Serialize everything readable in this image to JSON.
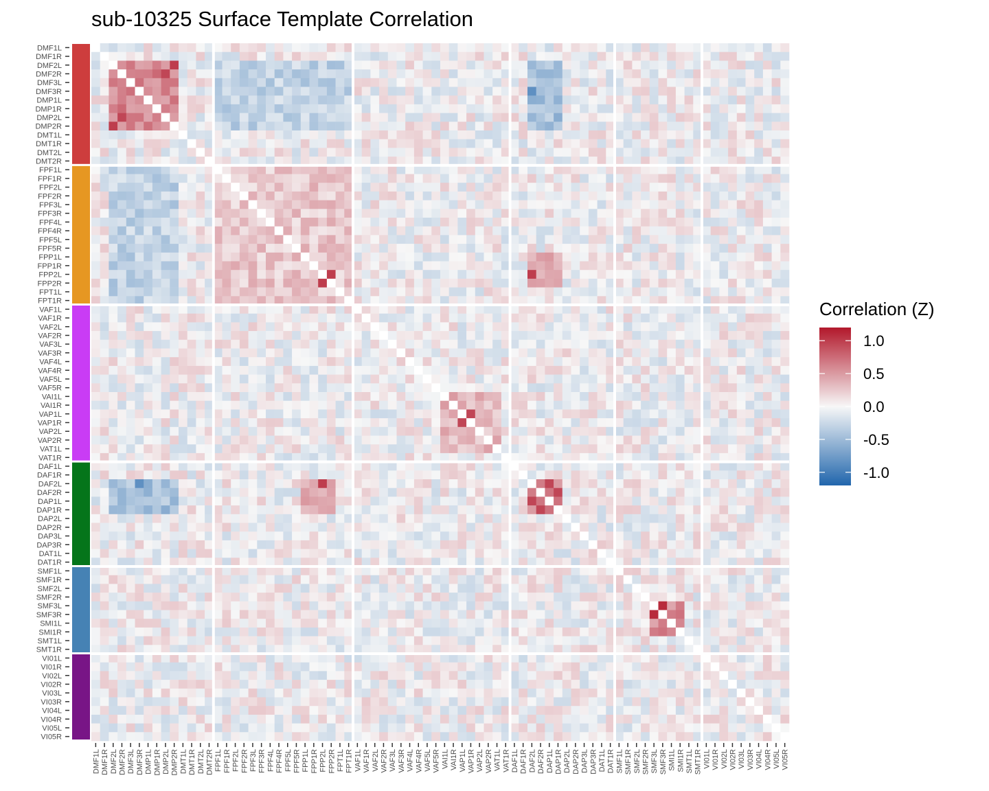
{
  "chart_data": {
    "type": "heatmap",
    "title": "sub-10325 Surface Template Correlation",
    "xlabel": "",
    "ylabel": "",
    "labels": [
      "DMF1L",
      "DMF1R",
      "DMF2L",
      "DMF2R",
      "DMF3L",
      "DMF3R",
      "DMP1L",
      "DMP1R",
      "DMP2L",
      "DMP2R",
      "DMT1L",
      "DMT1R",
      "DMT2L",
      "DMT2R",
      "FPF1L",
      "FPF1R",
      "FPF2L",
      "FPF2R",
      "FPF3L",
      "FPF3R",
      "FPF4L",
      "FPF4R",
      "FPF5L",
      "FPF5R",
      "FPP1L",
      "FPP1R",
      "FPP2L",
      "FPP2R",
      "FPT1L",
      "FPT1R",
      "VAF1L",
      "VAF1R",
      "VAF2L",
      "VAF2R",
      "VAF3L",
      "VAF3R",
      "VAF4L",
      "VAF4R",
      "VAF5L",
      "VAF5R",
      "VAI1L",
      "VAI1R",
      "VAP1L",
      "VAP1R",
      "VAP2L",
      "VAP2R",
      "VAT1L",
      "VAT1R",
      "DAF1L",
      "DAF1R",
      "DAF2L",
      "DAF2R",
      "DAP1L",
      "DAP1R",
      "DAP2L",
      "DAP2R",
      "DAP3L",
      "DAP3R",
      "DAT1L",
      "DAT1R",
      "SMF1L",
      "SMF1R",
      "SMF2L",
      "SMF2R",
      "SMF3L",
      "SMF3R",
      "SMI1L",
      "SMI1R",
      "SMT1L",
      "SMT1R",
      "VI01L",
      "VI01R",
      "VI02L",
      "VI02R",
      "VI03L",
      "VI03R",
      "VI04L",
      "VI04R",
      "VI05L",
      "VI05R"
    ],
    "networks": [
      {
        "color": "#cd3d3d",
        "count": 14
      },
      {
        "color": "#e69722",
        "count": 16
      },
      {
        "color": "#c93cf5",
        "count": 18
      },
      {
        "color": "#05751a",
        "count": 12
      },
      {
        "color": "#4682b4",
        "count": 10
      },
      {
        "color": "#781586",
        "count": 10
      }
    ],
    "legend": {
      "title": "Correlation (Z)",
      "ticks": [
        1.0,
        0.5,
        0.0,
        -0.5,
        -1.0
      ],
      "tick_labels": [
        "1.0",
        "0.5",
        "0.0",
        "-0.5",
        "-1.0"
      ],
      "position": "right"
    },
    "color_scale": {
      "low": "#2166ac",
      "mid": "#f7f7f7",
      "high": "#b2182b",
      "limits": [
        -1.2,
        1.2
      ]
    },
    "value_range": [
      -1.2,
      1.2
    ],
    "diagonal": "blank",
    "blocks": [
      {
        "rows": "DMF2L-DMP2R",
        "cols": "DMF2L-DMP2R",
        "mean": 0.6
      },
      {
        "rows": "DMF2L-DMP2R",
        "cols": "FPF1L-FPT1R",
        "mean": -0.3
      },
      {
        "rows": "FPF1L-FPT1R",
        "cols": "FPF1L-FPT1R",
        "mean": 0.25
      },
      {
        "rows": "VAI1L-VAT1L",
        "cols": "VAI1L-VAT1L",
        "mean": 0.35
      },
      {
        "rows": "DAF2L-DAP1R",
        "cols": "DAF2L-DAP1R",
        "mean": 0.6
      },
      {
        "rows": "DAF2L-DAP1R",
        "cols": "FPP1L-FPP2R",
        "mean": 0.45
      },
      {
        "rows": "DAF2L-DAP1R",
        "cols": "DMF2L-DMP2R",
        "mean": -0.45
      },
      {
        "rows": "SMF3L-SMI1R",
        "cols": "SMF3L-SMI1R",
        "mean": 0.6
      }
    ],
    "strong_pairs": [
      {
        "a": "DMF2R",
        "b": "DMP2L",
        "value": 0.95
      },
      {
        "a": "DMF2L",
        "b": "DMP2R",
        "value": 1.0
      },
      {
        "a": "FPP2L",
        "b": "FPP2R",
        "value": 1.0
      },
      {
        "a": "VAP1L",
        "b": "VAP1R",
        "value": 0.95
      },
      {
        "a": "DAF2L",
        "b": "DAP1L",
        "value": 0.95
      },
      {
        "a": "DAF2R",
        "b": "DAP1R",
        "value": 0.95
      },
      {
        "a": "SMF3L",
        "b": "SMF3R",
        "value": 1.1
      },
      {
        "a": "DAF2L",
        "b": "FPP2L",
        "value": 1.0
      },
      {
        "a": "DAF2L",
        "b": "DMF3R",
        "value": -0.85
      }
    ]
  }
}
